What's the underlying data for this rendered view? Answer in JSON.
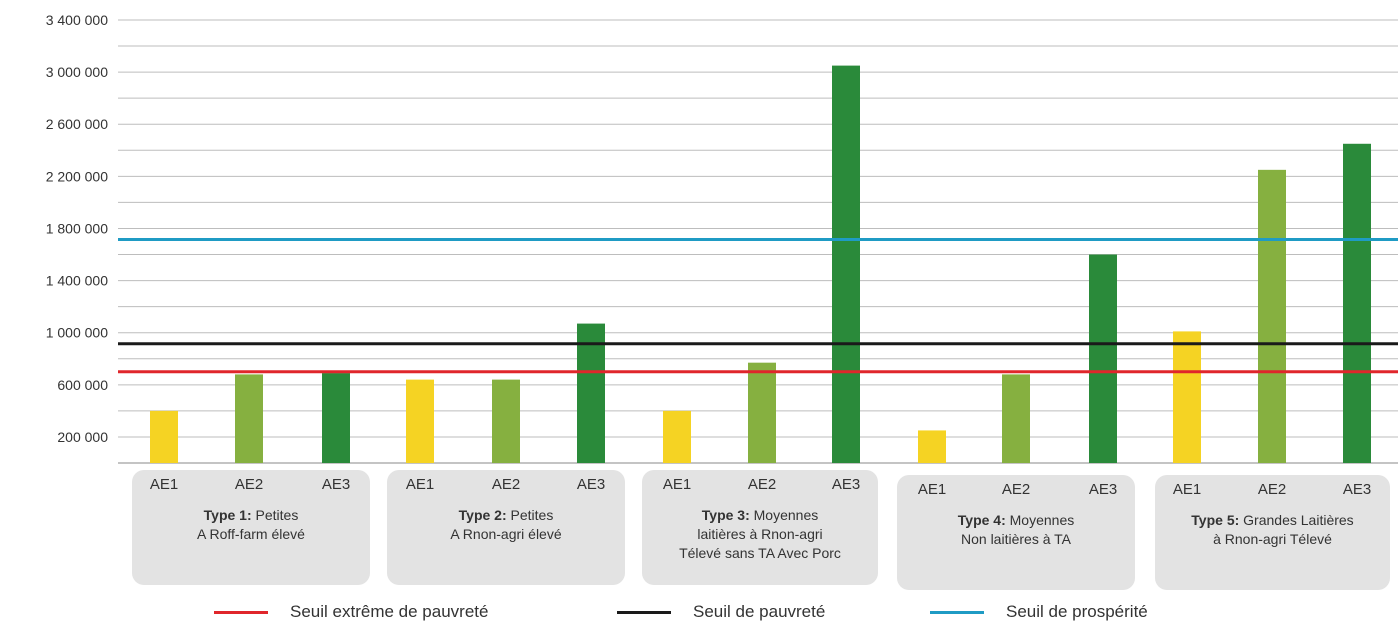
{
  "chart_data": {
    "type": "bar",
    "ylim": [
      0,
      3400000
    ],
    "yticks": [
      {
        "value": 3400000,
        "label": "3 400 000"
      },
      {
        "value": 3000000,
        "label": "3 000 000"
      },
      {
        "value": 2600000,
        "label": "2 600 000"
      },
      {
        "value": 2200000,
        "label": "2 200 000"
      },
      {
        "value": 1800000,
        "label": "1 800 000"
      },
      {
        "value": 1400000,
        "label": "1 400 000"
      },
      {
        "value": 1000000,
        "label": "1 000 000"
      },
      {
        "value": 600000,
        "label": "600 000"
      },
      {
        "value": 200000,
        "label": "200 000"
      }
    ],
    "gridlines": [
      3400000,
      3200000,
      3000000,
      2800000,
      2600000,
      2400000,
      2200000,
      2000000,
      1800000,
      1600000,
      1400000,
      1200000,
      1000000,
      800000,
      600000,
      400000,
      200000,
      0
    ],
    "grid": true,
    "legend_position": "bottom",
    "categories": [
      "AE1",
      "AE2",
      "AE3"
    ],
    "category_colors": [
      "#f5d323",
      "#86b040",
      "#2a8a3a"
    ],
    "groups": [
      {
        "title_bold": "Type 1:",
        "title_rest": " Petites",
        "title_line2": "A Roff-farm élevé",
        "title_line3": "",
        "values": [
          400000,
          680000,
          690000
        ]
      },
      {
        "title_bold": "Type 2:",
        "title_rest": " Petites",
        "title_line2": "A Rnon-agri élevé",
        "title_line3": "",
        "values": [
          640000,
          640000,
          1070000
        ]
      },
      {
        "title_bold": "Type 3:",
        "title_rest": " Moyennes",
        "title_line2": "laitières à Rnon-agri",
        "title_line3": "Télevé sans TA Avec Porc",
        "values": [
          400000,
          770000,
          3050000
        ]
      },
      {
        "title_bold": "Type 4:",
        "title_rest": " Moyennes",
        "title_line2": "Non laitières à TA",
        "title_line3": "",
        "values": [
          250000,
          680000,
          1600000
        ]
      },
      {
        "title_bold": "Type 5:",
        "title_rest": " Grandes Laitières",
        "title_line2": "à Rnon-agri Télevé",
        "title_line3": "",
        "values": [
          1010000,
          2250000,
          2450000
        ]
      }
    ],
    "threshold_lines": [
      {
        "name": "Seuil extrême de pauvreté",
        "value": 700000,
        "color": "#e0262b"
      },
      {
        "name": "Seuil de pauvreté",
        "value": 915000,
        "color": "#1a1a1a"
      },
      {
        "name": "Seuil de prospérité",
        "value": 1715000,
        "color": "#1f9bc4"
      }
    ]
  }
}
